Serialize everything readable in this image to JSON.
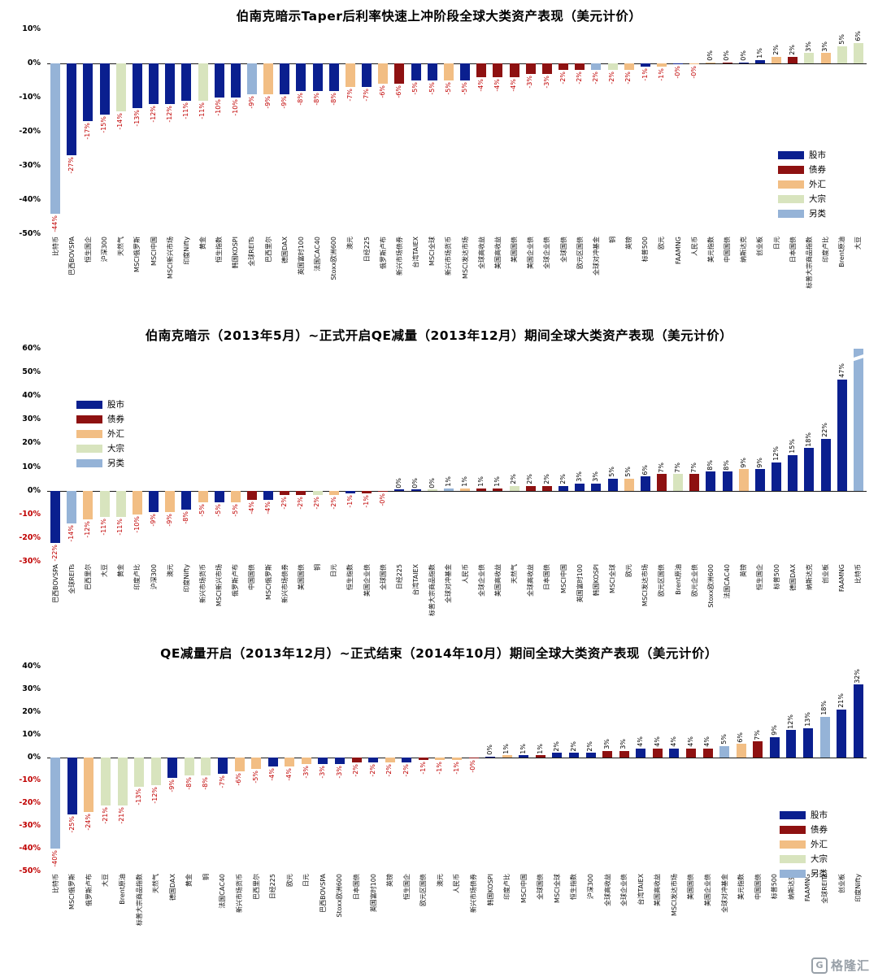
{
  "watermark": {
    "icon_letter": "G",
    "text": "格隆汇"
  },
  "colors": {
    "stock": "#0a1f8f",
    "bond": "#8e1111",
    "fx": "#f2be84",
    "comm": "#d8e4be",
    "alt": "#95b3d7",
    "neg_label": "#c00000"
  },
  "legend": {
    "items": [
      {
        "key": "stock",
        "label": "股市"
      },
      {
        "key": "bond",
        "label": "债券"
      },
      {
        "key": "fx",
        "label": "外汇"
      },
      {
        "key": "comm",
        "label": "大宗"
      },
      {
        "key": "alt",
        "label": "另类"
      }
    ]
  },
  "chart_data": [
    {
      "type": "bar",
      "title": "伯南克暗示Taper后利率快速上冲阶段全球大类资产表现（美元计价）",
      "ylim": [
        -50,
        10
      ],
      "ystep": 10,
      "neg_ticks_red": false,
      "grid": false,
      "legend_position": "right",
      "points": [
        {
          "label": "比特币",
          "value": -44,
          "text": "-44%",
          "cat": "alt"
        },
        {
          "label": "巴西BOVSPA",
          "value": -27,
          "text": "-27%",
          "cat": "stock"
        },
        {
          "label": "恒生国企",
          "value": -17,
          "text": "-17%",
          "cat": "stock"
        },
        {
          "label": "沪深300",
          "value": -15,
          "text": "-15%",
          "cat": "stock"
        },
        {
          "label": "天然气",
          "value": -14,
          "text": "-14%",
          "cat": "comm"
        },
        {
          "label": "MSCI俄罗斯",
          "value": -13,
          "text": "-13%",
          "cat": "stock"
        },
        {
          "label": "MSCI中国",
          "value": -12,
          "text": "-12%",
          "cat": "stock"
        },
        {
          "label": "MSCI新兴市场",
          "value": -12,
          "text": "-12%",
          "cat": "stock"
        },
        {
          "label": "印度Nifty",
          "value": -11,
          "text": "-11%",
          "cat": "stock"
        },
        {
          "label": "黄金",
          "value": -11,
          "text": "-11%",
          "cat": "comm"
        },
        {
          "label": "恒生指数",
          "value": -10,
          "text": "-10%",
          "cat": "stock"
        },
        {
          "label": "韩国KOSPI",
          "value": -10,
          "text": "-10%",
          "cat": "stock"
        },
        {
          "label": "全球REITs",
          "value": -9,
          "text": "-9%",
          "cat": "alt"
        },
        {
          "label": "巴西里尔",
          "value": -9,
          "text": "-9%",
          "cat": "fx"
        },
        {
          "label": "德国DAX",
          "value": -9,
          "text": "-9%",
          "cat": "stock"
        },
        {
          "label": "英国富时100",
          "value": -8,
          "text": "-8%",
          "cat": "stock"
        },
        {
          "label": "法国CAC40",
          "value": -8,
          "text": "-8%",
          "cat": "stock"
        },
        {
          "label": "Stoxx欧洲600",
          "value": -8,
          "text": "-8%",
          "cat": "stock"
        },
        {
          "label": "澳元",
          "value": -7,
          "text": "-7%",
          "cat": "fx"
        },
        {
          "label": "日经225",
          "value": -7,
          "text": "-7%",
          "cat": "stock"
        },
        {
          "label": "俄罗斯卢布",
          "value": -6,
          "text": "-6%",
          "cat": "fx"
        },
        {
          "label": "新兴市场债券",
          "value": -6,
          "text": "-6%",
          "cat": "bond"
        },
        {
          "label": "台湾TAIEX",
          "value": -5,
          "text": "-5%",
          "cat": "stock"
        },
        {
          "label": "MSCI全球",
          "value": -5,
          "text": "-5%",
          "cat": "stock"
        },
        {
          "label": "新兴市场货币",
          "value": -5,
          "text": "-5%",
          "cat": "fx"
        },
        {
          "label": "MSCI发达市场",
          "value": -5,
          "text": "-5%",
          "cat": "stock"
        },
        {
          "label": "全球高收益",
          "value": -4,
          "text": "-4%",
          "cat": "bond"
        },
        {
          "label": "美国高收益",
          "value": -4,
          "text": "-4%",
          "cat": "bond"
        },
        {
          "label": "美国国债",
          "value": -4,
          "text": "-4%",
          "cat": "bond"
        },
        {
          "label": "美国企业债",
          "value": -3,
          "text": "-3%",
          "cat": "bond"
        },
        {
          "label": "全球企业债",
          "value": -3,
          "text": "-3%",
          "cat": "bond"
        },
        {
          "label": "全球国债",
          "value": -2,
          "text": "-2%",
          "cat": "bond"
        },
        {
          "label": "欧元区国债",
          "value": -2,
          "text": "-2%",
          "cat": "bond"
        },
        {
          "label": "全球对冲基金",
          "value": -2,
          "text": "-2%",
          "cat": "alt"
        },
        {
          "label": "铜",
          "value": -2,
          "text": "-2%",
          "cat": "comm"
        },
        {
          "label": "英镑",
          "value": -2,
          "text": "-2%",
          "cat": "fx"
        },
        {
          "label": "标普500",
          "value": -1,
          "text": "-1%",
          "cat": "stock"
        },
        {
          "label": "欧元",
          "value": -1,
          "text": "-1%",
          "cat": "fx"
        },
        {
          "label": "FAAMNG",
          "value": -0.3,
          "text": "-0%",
          "cat": "stock"
        },
        {
          "label": "人民币",
          "value": -0.3,
          "text": "-0%",
          "cat": "fx"
        },
        {
          "label": "美元指数",
          "value": 0.3,
          "text": "0%",
          "cat": "fx"
        },
        {
          "label": "中国国债",
          "value": 0.3,
          "text": "0%",
          "cat": "bond"
        },
        {
          "label": "纳斯达克",
          "value": 0.3,
          "text": "0%",
          "cat": "stock"
        },
        {
          "label": "创业板",
          "value": 1,
          "text": "1%",
          "cat": "stock"
        },
        {
          "label": "日元",
          "value": 2,
          "text": "2%",
          "cat": "fx"
        },
        {
          "label": "日本国债",
          "value": 2,
          "text": "2%",
          "cat": "bond"
        },
        {
          "label": "标普大宗商品指数",
          "value": 3,
          "text": "3%",
          "cat": "comm"
        },
        {
          "label": "印度卢比",
          "value": 3,
          "text": "3%",
          "cat": "fx"
        },
        {
          "label": "Brent原油",
          "value": 5,
          "text": "5%",
          "cat": "comm"
        },
        {
          "label": "大豆",
          "value": 6,
          "text": "6%",
          "cat": "comm"
        }
      ]
    },
    {
      "type": "bar",
      "title": "伯南克暗示（2013年5月）~正式开启QE减量（2013年12月）期间全球大类资产表现（美元计价）",
      "ylim": [
        -30,
        60
      ],
      "ystep": 10,
      "neg_ticks_red": true,
      "grid": false,
      "legend_position": "left",
      "points": [
        {
          "label": "巴西BOVSPA",
          "value": -22,
          "text": "-22%",
          "cat": "stock"
        },
        {
          "label": "全球REITs",
          "value": -14,
          "text": "-14%",
          "cat": "alt"
        },
        {
          "label": "巴西里尔",
          "value": -12,
          "text": "-12%",
          "cat": "fx"
        },
        {
          "label": "大豆",
          "value": -11,
          "text": "-11%",
          "cat": "comm"
        },
        {
          "label": "黄金",
          "value": -11,
          "text": "-11%",
          "cat": "comm"
        },
        {
          "label": "印度卢比",
          "value": -10,
          "text": "-10%",
          "cat": "fx"
        },
        {
          "label": "沪深300",
          "value": -9,
          "text": "-9%",
          "cat": "stock"
        },
        {
          "label": "澳元",
          "value": -9,
          "text": "-9%",
          "cat": "fx"
        },
        {
          "label": "印度Nifty",
          "value": -8,
          "text": "-8%",
          "cat": "stock"
        },
        {
          "label": "新兴市场货币",
          "value": -5,
          "text": "-5%",
          "cat": "fx"
        },
        {
          "label": "MSCI新兴市场",
          "value": -5,
          "text": "-5%",
          "cat": "stock"
        },
        {
          "label": "俄罗斯卢布",
          "value": -5,
          "text": "-5%",
          "cat": "fx"
        },
        {
          "label": "中国国债",
          "value": -4,
          "text": "-4%",
          "cat": "bond"
        },
        {
          "label": "MSCI俄罗斯",
          "value": -4,
          "text": "-4%",
          "cat": "stock"
        },
        {
          "label": "新兴市场债券",
          "value": -2,
          "text": "-2%",
          "cat": "bond"
        },
        {
          "label": "美国国债",
          "value": -2,
          "text": "-2%",
          "cat": "bond"
        },
        {
          "label": "铜",
          "value": -2,
          "text": "-2%",
          "cat": "comm"
        },
        {
          "label": "日元",
          "value": -2,
          "text": "-2%",
          "cat": "fx"
        },
        {
          "label": "恒生指数",
          "value": -1,
          "text": "-1%",
          "cat": "stock"
        },
        {
          "label": "美国企业债",
          "value": -1,
          "text": "-1%",
          "cat": "bond"
        },
        {
          "label": "全球国债",
          "value": -0.3,
          "text": "-0%",
          "cat": "bond"
        },
        {
          "label": "日经225",
          "value": 0.3,
          "text": "0%",
          "cat": "stock"
        },
        {
          "label": "台湾TAIEX",
          "value": 0.3,
          "text": "0%",
          "cat": "stock"
        },
        {
          "label": "标普大宗商品指数",
          "value": 0.3,
          "text": "0%",
          "cat": "comm"
        },
        {
          "label": "全球对冲基金",
          "value": 1,
          "text": "1%",
          "cat": "alt"
        },
        {
          "label": "人民币",
          "value": 1,
          "text": "1%",
          "cat": "fx"
        },
        {
          "label": "全球企业债",
          "value": 1,
          "text": "1%",
          "cat": "bond"
        },
        {
          "label": "美国高收益",
          "value": 1,
          "text": "1%",
          "cat": "bond"
        },
        {
          "label": "天然气",
          "value": 2,
          "text": "2%",
          "cat": "comm"
        },
        {
          "label": "全球高收益",
          "value": 2,
          "text": "2%",
          "cat": "bond"
        },
        {
          "label": "日本国债",
          "value": 2,
          "text": "2%",
          "cat": "bond"
        },
        {
          "label": "MSCI中国",
          "value": 2,
          "text": "2%",
          "cat": "stock"
        },
        {
          "label": "英国富时100",
          "value": 3,
          "text": "3%",
          "cat": "stock"
        },
        {
          "label": "韩国KOSPI",
          "value": 3,
          "text": "3%",
          "cat": "stock"
        },
        {
          "label": "MSCI全球",
          "value": 5,
          "text": "5%",
          "cat": "stock"
        },
        {
          "label": "欧元",
          "value": 5,
          "text": "5%",
          "cat": "fx"
        },
        {
          "label": "MSCI发达市场",
          "value": 6,
          "text": "6%",
          "cat": "stock"
        },
        {
          "label": "欧元区国债",
          "value": 7,
          "text": "7%",
          "cat": "bond"
        },
        {
          "label": "Brent原油",
          "value": 7,
          "text": "7%",
          "cat": "comm"
        },
        {
          "label": "欧元企业债",
          "value": 7,
          "text": "7%",
          "cat": "bond"
        },
        {
          "label": "Stoxx欧洲600",
          "value": 8,
          "text": "8%",
          "cat": "stock"
        },
        {
          "label": "法国CAC40",
          "value": 8,
          "text": "8%",
          "cat": "stock"
        },
        {
          "label": "英镑",
          "value": 9,
          "text": "9%",
          "cat": "fx"
        },
        {
          "label": "恒生国企",
          "value": 9,
          "text": "9%",
          "cat": "stock"
        },
        {
          "label": "标普500",
          "value": 12,
          "text": "12%",
          "cat": "stock"
        },
        {
          "label": "德国DAX",
          "value": 15,
          "text": "15%",
          "cat": "stock"
        },
        {
          "label": "纳斯达克",
          "value": 18,
          "text": "18%",
          "cat": "stock"
        },
        {
          "label": "创业板",
          "value": 22,
          "text": "22%",
          "cat": "stock"
        },
        {
          "label": "FAAMNG",
          "value": 47,
          "text": "47%",
          "cat": "stock"
        },
        {
          "label": "比特币",
          "value": 60,
          "text": "",
          "cat": "alt",
          "clipped": true
        }
      ]
    },
    {
      "type": "bar",
      "title": "QE减量开启（2013年12月）~正式结束（2014年10月）期间全球大类资产表现（美元计价）",
      "ylim": [
        -50,
        40
      ],
      "ystep": 10,
      "neg_ticks_red": true,
      "grid": false,
      "legend_position": "right",
      "points": [
        {
          "label": "比特币",
          "value": -40,
          "text": "-40%",
          "cat": "alt"
        },
        {
          "label": "MSCI俄罗斯",
          "value": -25,
          "text": "-25%",
          "cat": "stock"
        },
        {
          "label": "俄罗斯卢布",
          "value": -24,
          "text": "-24%",
          "cat": "fx"
        },
        {
          "label": "大豆",
          "value": -21,
          "text": "-21%",
          "cat": "comm"
        },
        {
          "label": "Brent原油",
          "value": -21,
          "text": "-21%",
          "cat": "comm"
        },
        {
          "label": "标普大宗商品指数",
          "value": -13,
          "text": "-13%",
          "cat": "comm"
        },
        {
          "label": "天然气",
          "value": -12,
          "text": "-12%",
          "cat": "comm"
        },
        {
          "label": "德国DAX",
          "value": -9,
          "text": "-9%",
          "cat": "stock"
        },
        {
          "label": "黄金",
          "value": -8,
          "text": "-8%",
          "cat": "comm"
        },
        {
          "label": "铜",
          "value": -8,
          "text": "-8%",
          "cat": "comm"
        },
        {
          "label": "法国CAC40",
          "value": -7,
          "text": "-7%",
          "cat": "stock"
        },
        {
          "label": "新兴市场货币",
          "value": -6,
          "text": "-6%",
          "cat": "fx"
        },
        {
          "label": "巴西里尔",
          "value": -5,
          "text": "-5%",
          "cat": "fx"
        },
        {
          "label": "日经225",
          "value": -4,
          "text": "-4%",
          "cat": "stock"
        },
        {
          "label": "欧元",
          "value": -4,
          "text": "-4%",
          "cat": "fx"
        },
        {
          "label": "日元",
          "value": -3,
          "text": "-3%",
          "cat": "fx"
        },
        {
          "label": "巴西BOVSPA",
          "value": -3,
          "text": "-3%",
          "cat": "stock"
        },
        {
          "label": "Stoxx欧洲600",
          "value": -3,
          "text": "-3%",
          "cat": "stock"
        },
        {
          "label": "日本国债",
          "value": -2,
          "text": "-2%",
          "cat": "bond"
        },
        {
          "label": "英国富时100",
          "value": -2,
          "text": "-2%",
          "cat": "stock"
        },
        {
          "label": "英镑",
          "value": -2,
          "text": "-2%",
          "cat": "fx"
        },
        {
          "label": "恒生国企",
          "value": -2,
          "text": "-2%",
          "cat": "stock"
        },
        {
          "label": "欧元区国债",
          "value": -1,
          "text": "-1%",
          "cat": "bond"
        },
        {
          "label": "澳元",
          "value": -1,
          "text": "-1%",
          "cat": "fx"
        },
        {
          "label": "人民币",
          "value": -1,
          "text": "-1%",
          "cat": "fx"
        },
        {
          "label": "新兴市场债券",
          "value": -0.3,
          "text": "-0%",
          "cat": "bond"
        },
        {
          "label": "韩国KOSPI",
          "value": 0.3,
          "text": "0%",
          "cat": "stock"
        },
        {
          "label": "印度卢比",
          "value": 1,
          "text": "1%",
          "cat": "fx"
        },
        {
          "label": "MSCI中国",
          "value": 1,
          "text": "1%",
          "cat": "stock"
        },
        {
          "label": "全球国债",
          "value": 1,
          "text": "1%",
          "cat": "bond"
        },
        {
          "label": "MSCI全球",
          "value": 2,
          "text": "2%",
          "cat": "stock"
        },
        {
          "label": "恒生指数",
          "value": 2,
          "text": "2%",
          "cat": "stock"
        },
        {
          "label": "沪深300",
          "value": 2,
          "text": "2%",
          "cat": "stock"
        },
        {
          "label": "全球高收益",
          "value": 3,
          "text": "3%",
          "cat": "bond"
        },
        {
          "label": "全球企业债",
          "value": 3,
          "text": "3%",
          "cat": "bond"
        },
        {
          "label": "台湾TAIEX",
          "value": 4,
          "text": "4%",
          "cat": "stock"
        },
        {
          "label": "美国高收益",
          "value": 4,
          "text": "4%",
          "cat": "bond"
        },
        {
          "label": "MSCI发达市场",
          "value": 4,
          "text": "4%",
          "cat": "stock"
        },
        {
          "label": "美国国债",
          "value": 4,
          "text": "4%",
          "cat": "bond"
        },
        {
          "label": "美国企业债",
          "value": 4,
          "text": "4%",
          "cat": "bond"
        },
        {
          "label": "全球对冲基金",
          "value": 5,
          "text": "5%",
          "cat": "alt"
        },
        {
          "label": "美元指数",
          "value": 6,
          "text": "6%",
          "cat": "fx"
        },
        {
          "label": "中国国债",
          "value": 7,
          "text": "7%",
          "cat": "bond"
        },
        {
          "label": "标普500",
          "value": 9,
          "text": "9%",
          "cat": "stock"
        },
        {
          "label": "纳斯达克",
          "value": 12,
          "text": "12%",
          "cat": "stock"
        },
        {
          "label": "FAAMNG",
          "value": 13,
          "text": "13%",
          "cat": "stock"
        },
        {
          "label": "全球REITs",
          "value": 18,
          "text": "18%",
          "cat": "alt"
        },
        {
          "label": "创业板",
          "value": 21,
          "text": "21%",
          "cat": "stock"
        },
        {
          "label": "印度Nifty",
          "value": 32,
          "text": "32%",
          "cat": "stock"
        }
      ]
    }
  ]
}
